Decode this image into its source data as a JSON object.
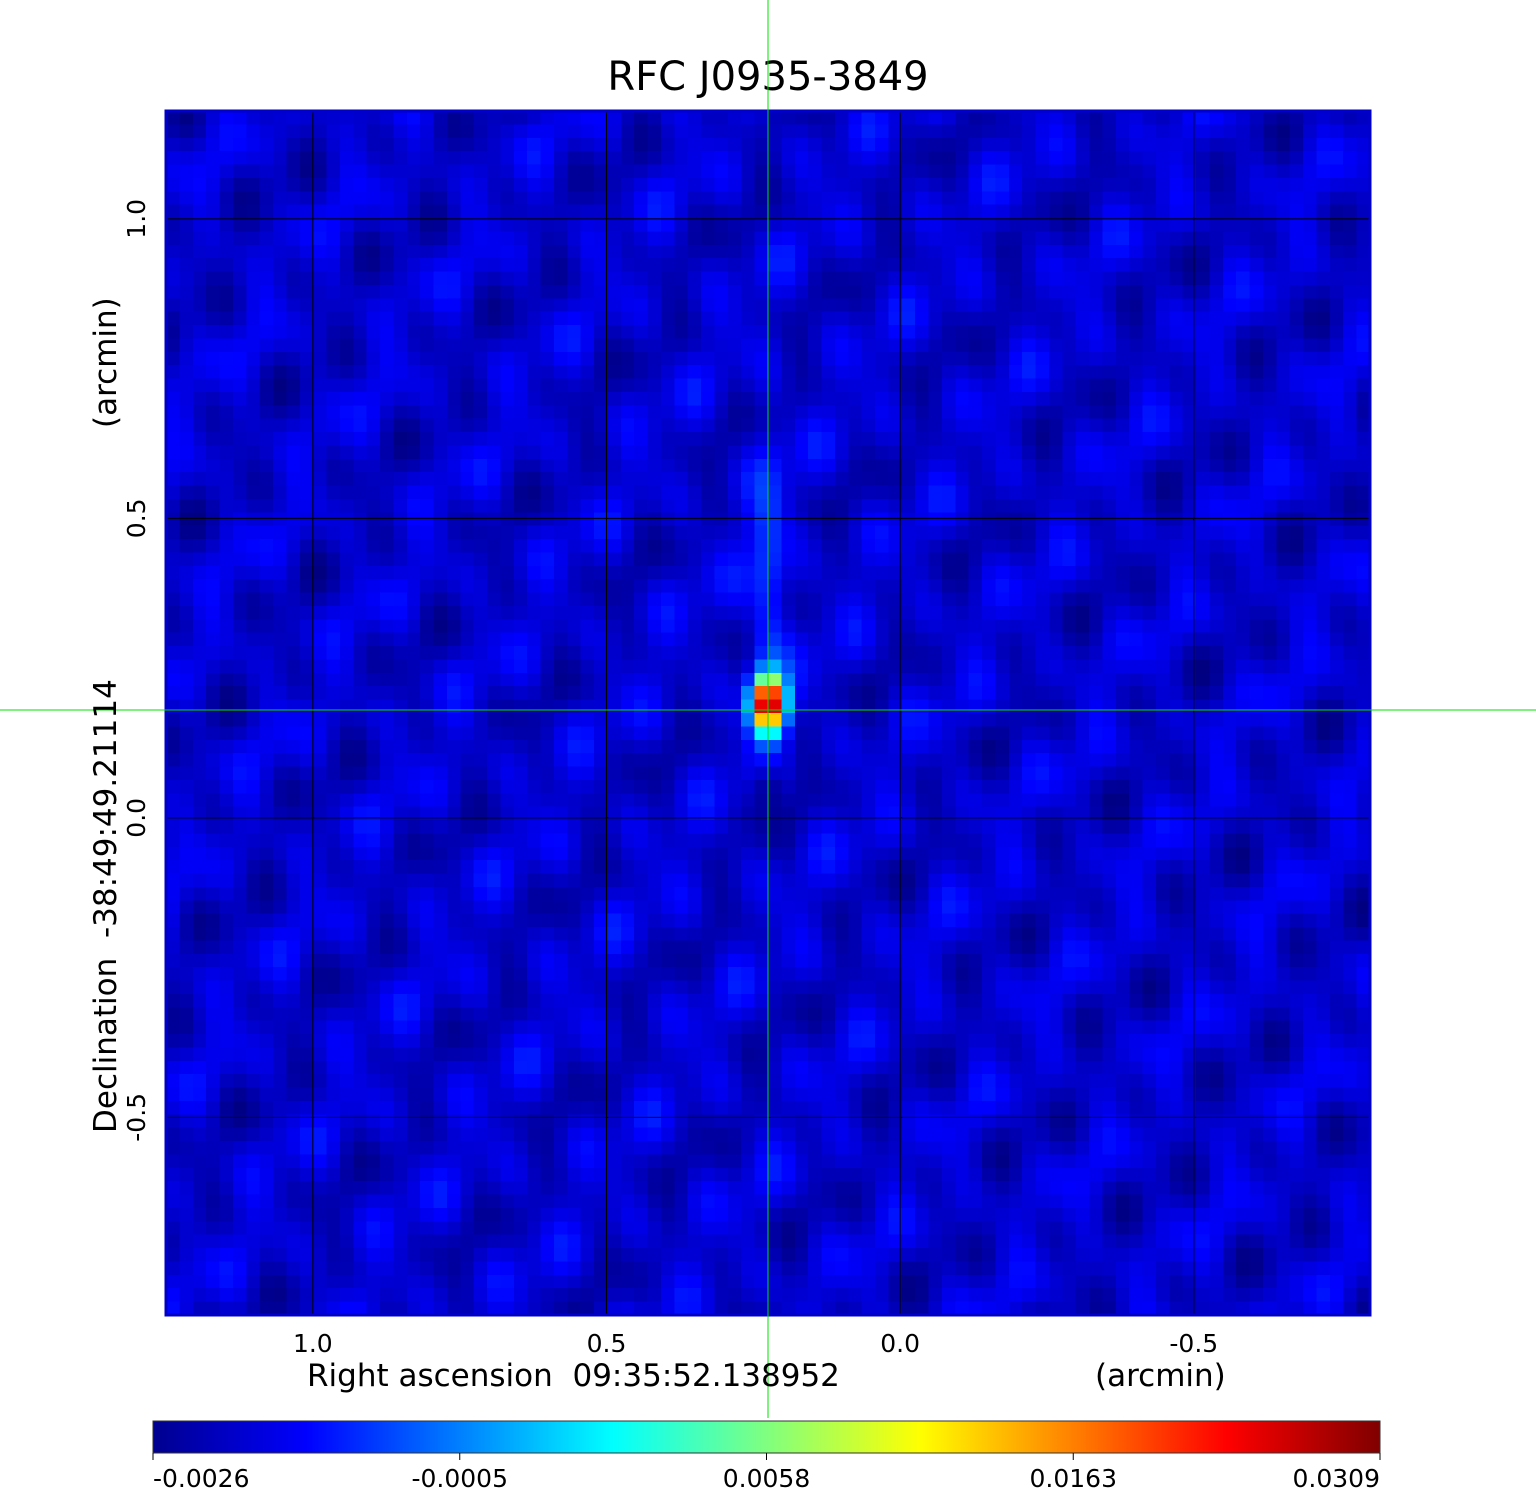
{
  "chart_data": {
    "type": "heatmap",
    "title": "RFC J0935-3849",
    "xlabel": "Right ascension  09:35:52.138952",
    "xunit": "(arcmin)",
    "ylabel": "Declination  -38:49:49.21114",
    "yunit": "(arcmin)",
    "x_ticks": [
      "1.0",
      "0.5",
      "0.0",
      "-0.5"
    ],
    "x_tick_values": [
      1.0,
      0.5,
      0.0,
      -0.5
    ],
    "y_ticks": [
      "1.0",
      "0.5",
      "0.0",
      "-0.5"
    ],
    "y_tick_values": [
      1.0,
      0.5,
      0.0,
      -0.5
    ],
    "xlim": [
      1.25,
      -0.8
    ],
    "ylim": [
      -0.83,
      1.18
    ],
    "grid": true,
    "crosshair": [
      0.225,
      0.18
    ],
    "colorbar": {
      "colormap": "jet",
      "ticks": [
        "-0.0026",
        "-0.0005",
        "0.0058",
        "0.0163",
        "0.0309"
      ],
      "tick_values": [
        -0.0026,
        -0.0005,
        0.0058,
        0.0163,
        0.0309
      ]
    },
    "background_level": 0.0,
    "peak": {
      "x": 0.225,
      "y": 0.19,
      "value": 0.0309
    },
    "negative_lobe": {
      "x": 0.225,
      "y": 0.06,
      "value": -0.0026
    }
  },
  "colors": {
    "title": "#0a0adc",
    "frame": "#0000c8",
    "grid": "#000000",
    "crosshair": "#00e000"
  }
}
